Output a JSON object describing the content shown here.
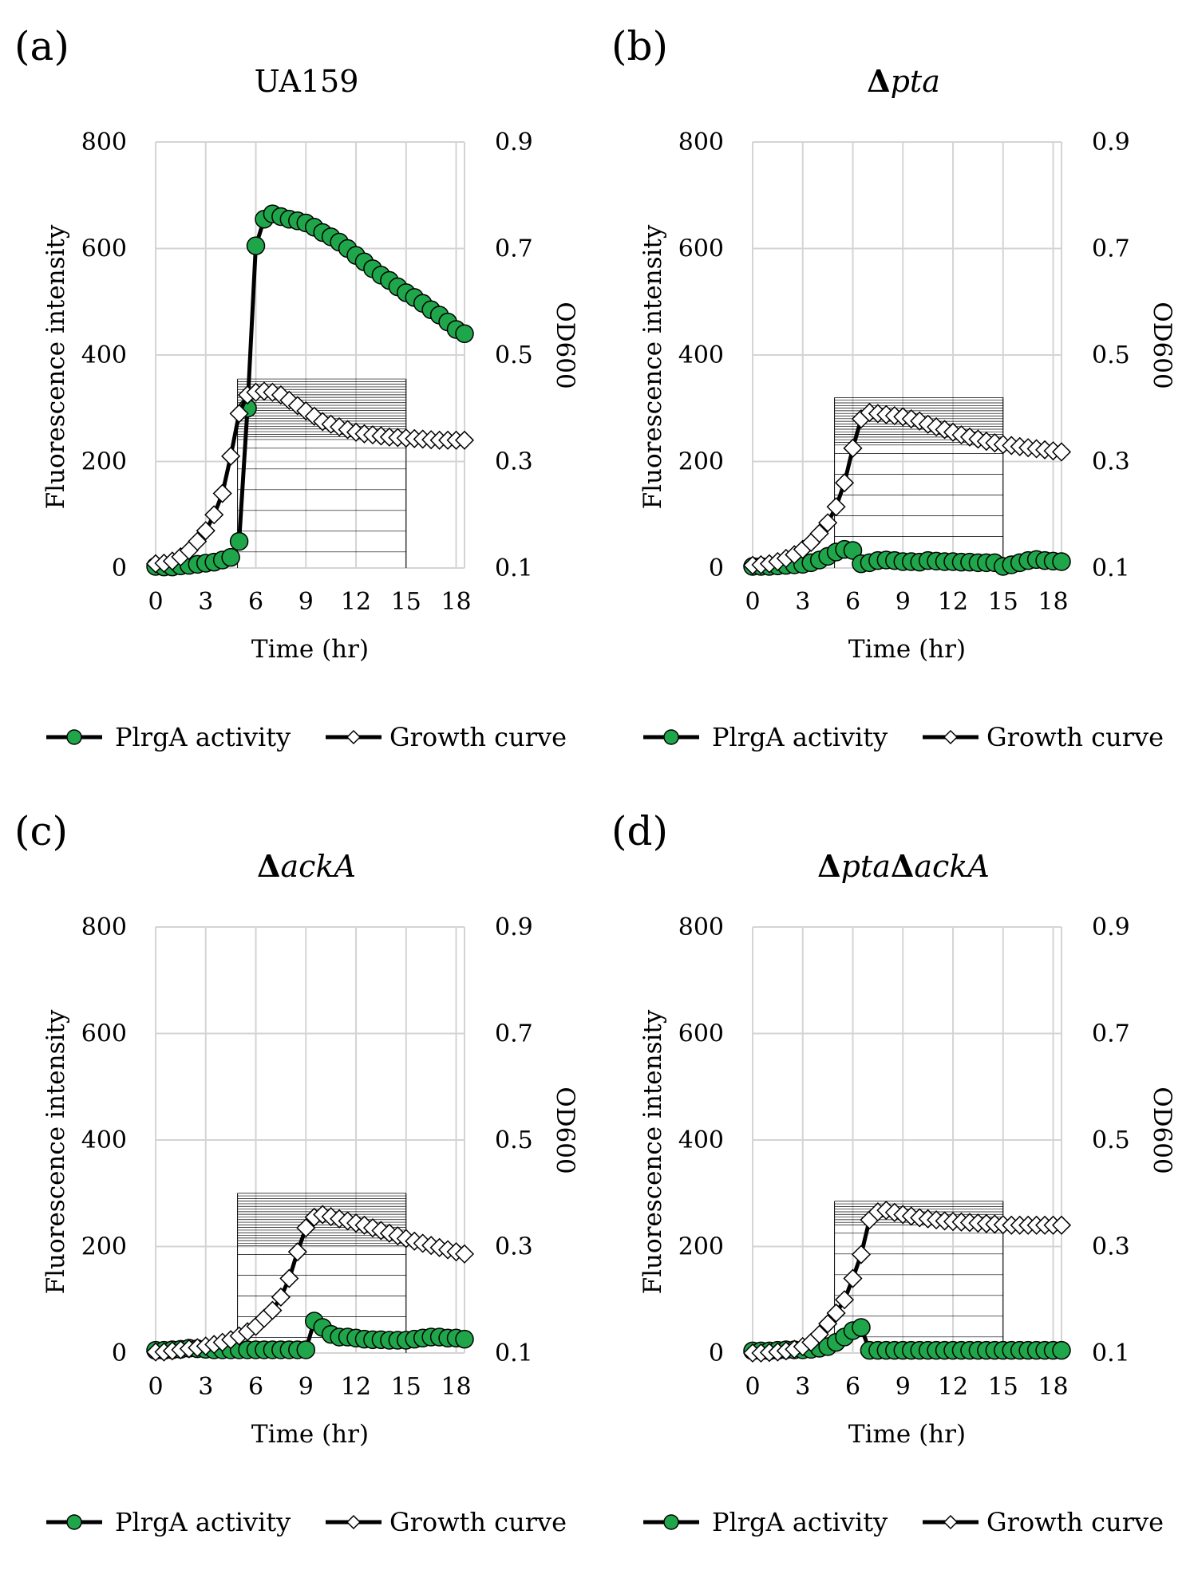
{
  "legend": {
    "activity": "PlrgA activity",
    "growth": "Growth curve"
  },
  "chart_data": [
    {
      "type": "line",
      "panel_label": "(a)",
      "title": "UA159",
      "title_parts": [
        {
          "t": "UA159",
          "italic": false,
          "bold": false
        }
      ],
      "xlabel": "Time (hr)",
      "ylabel": "Fluorescence intensity",
      "y2label": "OD600",
      "xlim": [
        0,
        18.5
      ],
      "ylim": [
        0,
        800
      ],
      "y2lim": [
        0.1,
        0.9
      ],
      "xticks": [
        "0",
        "3",
        "6",
        "9",
        "12",
        "15",
        "18"
      ],
      "yticks": [
        "0",
        "200",
        "400",
        "600",
        "800"
      ],
      "y2ticks": [
        "0.1",
        "0.3",
        "0.5",
        "0.7",
        "0.9"
      ],
      "grid": true,
      "legend_position": "bottom",
      "series": [
        {
          "name": "PlrgA activity",
          "axis": "left",
          "marker": "circle",
          "color": "#1fa64a",
          "x": [
            0,
            0.5,
            1,
            1.5,
            2,
            2.5,
            3,
            3.5,
            4,
            4.5,
            5,
            5.5,
            6,
            6.5,
            7,
            7.5,
            8,
            8.5,
            9,
            9.5,
            10,
            10.5,
            11,
            11.5,
            12,
            12.5,
            13,
            13.5,
            14,
            14.5,
            15,
            15.5,
            16,
            16.5,
            17,
            17.5,
            18,
            18.5
          ],
          "y": [
            3,
            2,
            2,
            4,
            5,
            7,
            9,
            11,
            15,
            20,
            50,
            300,
            605,
            655,
            665,
            660,
            655,
            652,
            648,
            640,
            630,
            622,
            612,
            600,
            587,
            575,
            562,
            550,
            540,
            528,
            517,
            508,
            497,
            485,
            475,
            462,
            448,
            440
          ]
        },
        {
          "name": "Growth curve",
          "axis": "right",
          "marker": "diamond",
          "color": "#ffffff",
          "x": [
            0,
            0.5,
            1,
            1.5,
            2,
            2.5,
            3,
            3.5,
            4,
            4.5,
            5,
            5.5,
            6,
            6.5,
            7,
            7.5,
            8,
            8.5,
            9,
            9.5,
            10,
            10.5,
            11,
            11.5,
            12,
            12.5,
            13,
            13.5,
            14,
            14.5,
            15,
            15.5,
            16,
            16.5,
            17,
            17.5,
            18,
            18.5
          ],
          "y": [
            0.108,
            0.109,
            0.113,
            0.121,
            0.133,
            0.15,
            0.17,
            0.2,
            0.24,
            0.31,
            0.39,
            0.425,
            0.43,
            0.432,
            0.43,
            0.425,
            0.415,
            0.405,
            0.395,
            0.385,
            0.375,
            0.37,
            0.365,
            0.36,
            0.355,
            0.352,
            0.35,
            0.348,
            0.346,
            0.345,
            0.344,
            0.343,
            0.342,
            0.341,
            0.34,
            0.34,
            0.34,
            0.34
          ]
        }
      ]
    },
    {
      "type": "line",
      "panel_label": "(b)",
      "title": "Δpta",
      "title_parts": [
        {
          "t": "Δ",
          "italic": false,
          "bold": true
        },
        {
          "t": "pta",
          "italic": true,
          "bold": false
        }
      ],
      "xlabel": "Time (hr)",
      "ylabel": "Fluorescence intensity",
      "y2label": "OD600",
      "xlim": [
        0,
        18.5
      ],
      "ylim": [
        0,
        800
      ],
      "y2lim": [
        0.1,
        0.9
      ],
      "xticks": [
        "0",
        "3",
        "6",
        "9",
        "12",
        "15",
        "18"
      ],
      "yticks": [
        "0",
        "200",
        "400",
        "600",
        "800"
      ],
      "y2ticks": [
        "0.1",
        "0.3",
        "0.5",
        "0.7",
        "0.9"
      ],
      "grid": true,
      "legend_position": "bottom",
      "series": [
        {
          "name": "PlrgA activity",
          "axis": "left",
          "marker": "circle",
          "color": "#1fa64a",
          "x": [
            0,
            0.5,
            1,
            1.5,
            2,
            2.5,
            3,
            3.5,
            4,
            4.5,
            5,
            5.5,
            6,
            6.5,
            7,
            7.5,
            8,
            8.5,
            9,
            9.5,
            10,
            10.5,
            11,
            11.5,
            12,
            12.5,
            13,
            13.5,
            14,
            14.5,
            15,
            15.5,
            16,
            16.5,
            17,
            17.5,
            18,
            18.5
          ],
          "y": [
            3,
            3,
            3,
            4,
            5,
            6,
            7,
            10,
            15,
            22,
            30,
            35,
            33,
            8,
            10,
            14,
            15,
            14,
            12,
            12,
            11,
            14,
            13,
            12,
            12,
            11,
            11,
            10,
            10,
            10,
            3,
            6,
            10,
            14,
            16,
            14,
            13,
            12
          ]
        },
        {
          "name": "Growth curve",
          "axis": "right",
          "marker": "diamond",
          "color": "#ffffff",
          "x": [
            0,
            0.5,
            1,
            1.5,
            2,
            2.5,
            3,
            3.5,
            4,
            4.5,
            5,
            5.5,
            6,
            6.5,
            7,
            7.5,
            8,
            8.5,
            9,
            9.5,
            10,
            10.5,
            11,
            11.5,
            12,
            12.5,
            13,
            13.5,
            14,
            14.5,
            15,
            15.5,
            16,
            16.5,
            17,
            17.5,
            18,
            18.5
          ],
          "y": [
            0.105,
            0.106,
            0.108,
            0.112,
            0.118,
            0.125,
            0.135,
            0.148,
            0.165,
            0.185,
            0.215,
            0.26,
            0.325,
            0.38,
            0.392,
            0.39,
            0.388,
            0.386,
            0.384,
            0.38,
            0.376,
            0.37,
            0.365,
            0.36,
            0.355,
            0.35,
            0.346,
            0.342,
            0.338,
            0.335,
            0.332,
            0.33,
            0.328,
            0.326,
            0.324,
            0.322,
            0.32,
            0.318
          ]
        }
      ]
    },
    {
      "type": "line",
      "panel_label": "(c)",
      "title": "ΔackA",
      "title_parts": [
        {
          "t": "Δ",
          "italic": false,
          "bold": true
        },
        {
          "t": "ackA",
          "italic": true,
          "bold": false
        }
      ],
      "xlabel": "Time (hr)",
      "ylabel": "Fluorescence intensity",
      "y2label": "OD600",
      "xlim": [
        0,
        18.5
      ],
      "ylim": [
        0,
        800
      ],
      "y2lim": [
        0.1,
        0.9
      ],
      "xticks": [
        "0",
        "3",
        "6",
        "9",
        "12",
        "15",
        "18"
      ],
      "yticks": [
        "0",
        "200",
        "400",
        "600",
        "800"
      ],
      "y2ticks": [
        "0.1",
        "0.3",
        "0.5",
        "0.7",
        "0.9"
      ],
      "grid": true,
      "legend_position": "bottom",
      "series": [
        {
          "name": "PlrgA activity",
          "axis": "left",
          "marker": "circle",
          "color": "#1fa64a",
          "x": [
            0,
            0.5,
            1,
            1.5,
            2,
            2.5,
            3,
            3.5,
            4,
            4.5,
            5,
            5.5,
            6,
            6.5,
            7,
            7.5,
            8,
            8.5,
            9,
            9.5,
            10,
            10.5,
            11,
            11.5,
            12,
            12.5,
            13,
            13.5,
            14,
            14.5,
            15,
            15.5,
            16,
            16.5,
            17,
            17.5,
            18,
            18.5
          ],
          "y": [
            5,
            5,
            6,
            7,
            9,
            8,
            7,
            6,
            6,
            6,
            6,
            6,
            6,
            6,
            6,
            6,
            6,
            6,
            6,
            60,
            48,
            35,
            30,
            30,
            28,
            26,
            25,
            25,
            24,
            24,
            24,
            26,
            28,
            30,
            30,
            28,
            28,
            26
          ]
        },
        {
          "name": "Growth curve",
          "axis": "right",
          "marker": "diamond",
          "color": "#ffffff",
          "x": [
            0,
            0.5,
            1,
            1.5,
            2,
            2.5,
            3,
            3.5,
            4,
            4.5,
            5,
            5.5,
            6,
            6.5,
            7,
            7.5,
            8,
            8.5,
            9,
            9.5,
            10,
            10.5,
            11,
            11.5,
            12,
            12.5,
            13,
            13.5,
            14,
            14.5,
            15,
            15.5,
            16,
            16.5,
            17,
            17.5,
            18,
            18.5
          ],
          "y": [
            0.102,
            0.102,
            0.104,
            0.106,
            0.108,
            0.11,
            0.113,
            0.116,
            0.12,
            0.125,
            0.132,
            0.14,
            0.15,
            0.165,
            0.18,
            0.205,
            0.24,
            0.29,
            0.335,
            0.355,
            0.36,
            0.356,
            0.352,
            0.348,
            0.344,
            0.34,
            0.335,
            0.33,
            0.325,
            0.32,
            0.315,
            0.31,
            0.306,
            0.302,
            0.298,
            0.294,
            0.29,
            0.286
          ]
        }
      ]
    },
    {
      "type": "line",
      "panel_label": "(d)",
      "title": "ΔptaΔackA",
      "title_parts": [
        {
          "t": "Δ",
          "italic": false,
          "bold": true
        },
        {
          "t": "pta",
          "italic": true,
          "bold": false
        },
        {
          "t": "Δ",
          "italic": false,
          "bold": true
        },
        {
          "t": "ackA",
          "italic": true,
          "bold": false
        }
      ],
      "xlabel": "Time (hr)",
      "ylabel": "Fluorescence intensity",
      "y2label": "OD600",
      "xlim": [
        0,
        18.5
      ],
      "ylim": [
        0,
        800
      ],
      "y2lim": [
        0.1,
        0.9
      ],
      "xticks": [
        "0",
        "3",
        "6",
        "9",
        "12",
        "15",
        "18"
      ],
      "yticks": [
        "0",
        "200",
        "400",
        "600",
        "800"
      ],
      "y2ticks": [
        "0.1",
        "0.3",
        "0.5",
        "0.7",
        "0.9"
      ],
      "grid": true,
      "legend_position": "bottom",
      "series": [
        {
          "name": "PlrgA activity",
          "axis": "left",
          "marker": "circle",
          "color": "#1fa64a",
          "x": [
            0,
            0.5,
            1,
            1.5,
            2,
            2.5,
            3,
            3.5,
            4,
            4.5,
            5,
            5.5,
            6,
            6.5,
            7,
            7.5,
            8,
            8.5,
            9,
            9.5,
            10,
            10.5,
            11,
            11.5,
            12,
            12.5,
            13,
            13.5,
            14,
            14.5,
            15,
            15.5,
            16,
            16.5,
            17,
            17.5,
            18,
            18.5
          ],
          "y": [
            4,
            4,
            4,
            5,
            6,
            6,
            6,
            7,
            9,
            12,
            20,
            30,
            42,
            48,
            5,
            5,
            5,
            5,
            5,
            5,
            5,
            5,
            5,
            5,
            5,
            5,
            5,
            5,
            5,
            5,
            5,
            5,
            5,
            5,
            5,
            5,
            5,
            5
          ]
        },
        {
          "name": "Growth curve",
          "axis": "right",
          "marker": "diamond",
          "color": "#ffffff",
          "x": [
            0,
            0.5,
            1,
            1.5,
            2,
            2.5,
            3,
            3.5,
            4,
            4.5,
            5,
            5.5,
            6,
            6.5,
            7,
            7.5,
            8,
            8.5,
            9,
            9.5,
            10,
            10.5,
            11,
            11.5,
            12,
            12.5,
            13,
            13.5,
            14,
            14.5,
            15,
            15.5,
            16,
            16.5,
            17,
            17.5,
            18,
            18.5
          ],
          "y": [
            0.1,
            0.1,
            0.101,
            0.102,
            0.104,
            0.107,
            0.112,
            0.12,
            0.135,
            0.155,
            0.175,
            0.2,
            0.24,
            0.285,
            0.35,
            0.365,
            0.368,
            0.364,
            0.36,
            0.357,
            0.354,
            0.352,
            0.35,
            0.348,
            0.347,
            0.346,
            0.345,
            0.344,
            0.343,
            0.342,
            0.341,
            0.34,
            0.34,
            0.34,
            0.34,
            0.34,
            0.34,
            0.34
          ]
        }
      ]
    }
  ]
}
